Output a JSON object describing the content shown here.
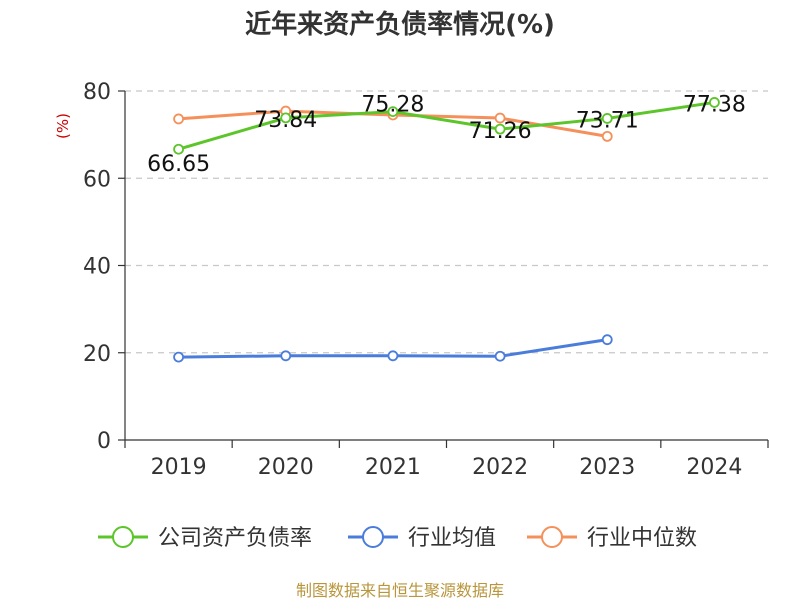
{
  "chart_data": {
    "type": "line",
    "title": "近年来资产负债率情况(%)",
    "ylabel": "(%)",
    "xlabel": "",
    "categories": [
      "2019",
      "2020",
      "2021",
      "2022",
      "2023",
      "2024"
    ],
    "ylim": [
      0,
      80
    ],
    "yticks": [
      0,
      20,
      40,
      60,
      80
    ],
    "grid": true,
    "legend_position": "bottom",
    "series": [
      {
        "name": "公司资产负债率",
        "color": "#5cc52a",
        "values": [
          66.65,
          73.84,
          75.28,
          71.26,
          73.71,
          77.38
        ],
        "labels": [
          "66.65",
          "73.84",
          "75.28",
          "71.26",
          "73.71",
          "77.38"
        ]
      },
      {
        "name": "行业均值",
        "color": "#4a7ddb",
        "values": [
          19.0,
          19.3,
          19.3,
          19.2,
          23.0,
          null
        ]
      },
      {
        "name": "行业中位数",
        "color": "#f5905a",
        "values": [
          73.6,
          75.4,
          74.5,
          73.8,
          69.6,
          null
        ]
      }
    ],
    "source": "制图数据来自恒生聚源数据库"
  }
}
